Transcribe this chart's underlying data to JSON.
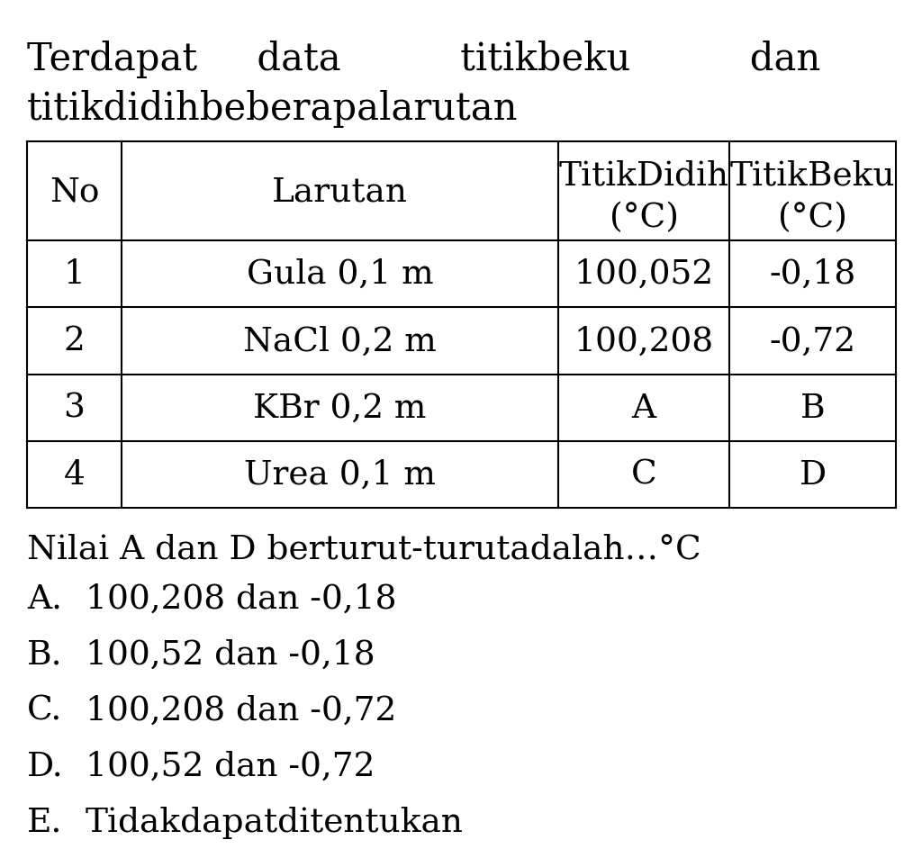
{
  "title_line1": "Terdapat     data          titikbeku          dan",
  "title_line2": "titikdidihbeberapalarutan",
  "col_headers_top": [
    "",
    "",
    "TitikDidih",
    "TitikBeku"
  ],
  "col_headers_bot": [
    "No",
    "Larutan",
    "(°C)",
    "(°C)"
  ],
  "rows": [
    [
      "1",
      "Gula 0,1 m",
      "100,052",
      "-0,18"
    ],
    [
      "2",
      "NaCl 0,2 m",
      "100,208",
      "-0,72"
    ],
    [
      "3",
      "KBr 0,2 m",
      "A",
      "B"
    ],
    [
      "4",
      "Urea 0,1 m",
      "C",
      "D"
    ]
  ],
  "question": "Nilai A dan D berturut-turutadalah…°C",
  "options": [
    [
      "A.",
      "100,208 dan -0,18"
    ],
    [
      "B.",
      "100,52 dan -0,18"
    ],
    [
      "C.",
      "100,208 dan -0,72"
    ],
    [
      "D.",
      "100,52 dan -0,72"
    ],
    [
      "E.",
      "Tidakdapatditentukan"
    ]
  ],
  "bg_color": "#ffffff",
  "text_color": "#000000",
  "font_size_title": 30,
  "font_size_table": 27,
  "font_size_question": 27,
  "font_size_options": 27
}
